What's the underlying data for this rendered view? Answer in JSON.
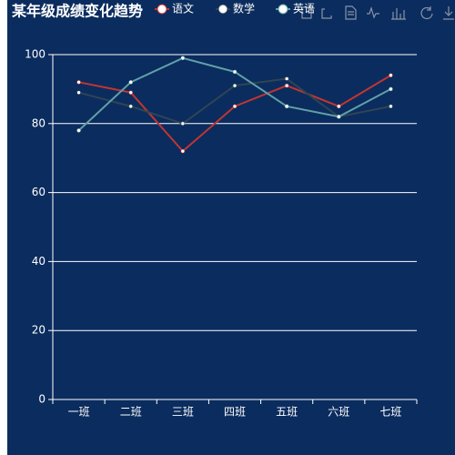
{
  "chart_data": {
    "type": "line",
    "title": "某年级成绩变化趋势",
    "categories": [
      "一班",
      "二班",
      "三班",
      "四班",
      "五班",
      "六班",
      "七班"
    ],
    "series": [
      {
        "name": "语文",
        "color": "#c23531",
        "values": [
          92,
          89,
          72,
          85,
          91,
          85,
          94
        ]
      },
      {
        "name": "数学",
        "color": "#2f4554",
        "values": [
          89,
          85,
          80,
          91,
          93,
          82,
          85
        ]
      },
      {
        "name": "英语",
        "color": "#61a0a8",
        "values": [
          78,
          92,
          99,
          95,
          85,
          82,
          90
        ]
      }
    ],
    "ylim": [
      0,
      100
    ],
    "yticks": [
      0,
      20,
      40,
      60,
      80,
      100
    ],
    "grid": true
  }
}
